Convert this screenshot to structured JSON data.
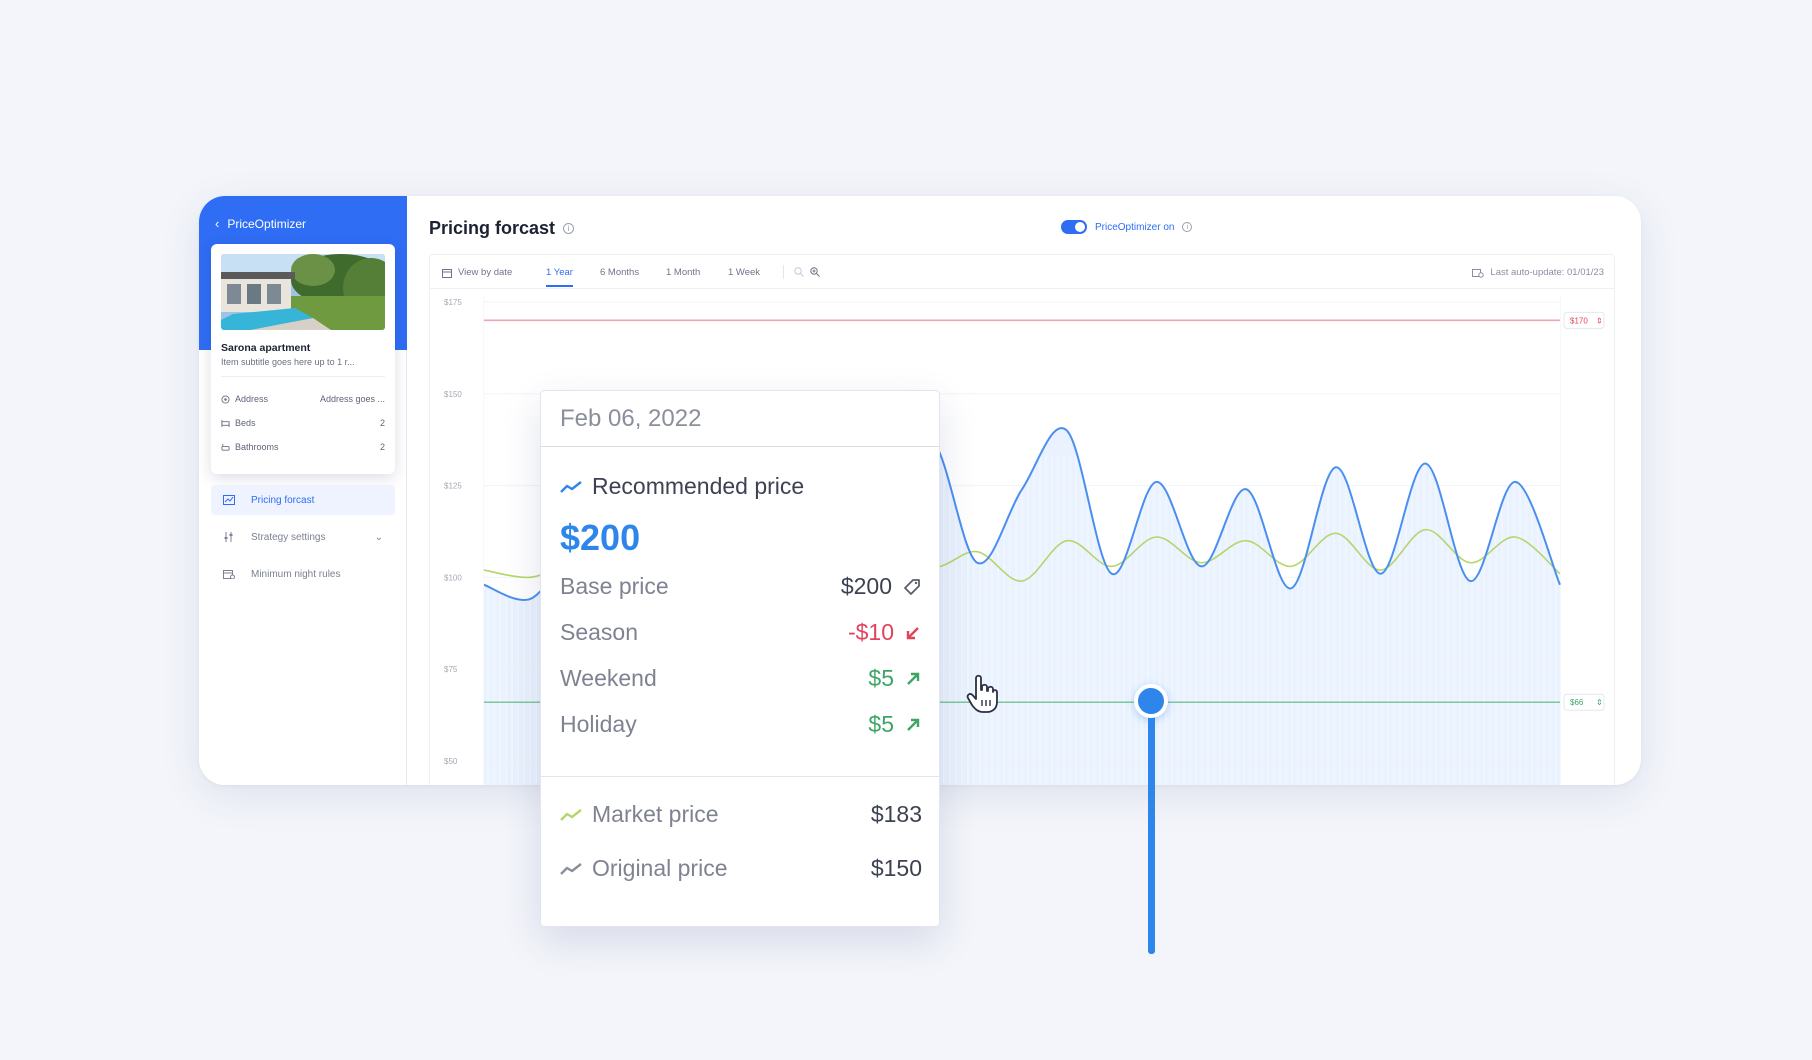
{
  "sidebar": {
    "back_label": "PriceOptimizer",
    "property": {
      "name": "Sarona apartment",
      "subtitle": "Item subtitle goes here up to 1 r...",
      "rows": [
        {
          "label": "Address",
          "value": "Address goes ...",
          "icon": "location-icon"
        },
        {
          "label": "Beds",
          "value": "2",
          "icon": "bed-icon"
        },
        {
          "label": "Bathrooms",
          "value": "2",
          "icon": "bath-icon"
        }
      ]
    },
    "nav": [
      {
        "label": "Pricing forcast",
        "icon": "chart-icon",
        "active": true
      },
      {
        "label": "Strategy settings",
        "icon": "sliders-icon",
        "active": false
      },
      {
        "label": "Minimum night rules",
        "icon": "calendar-icon",
        "active": false
      }
    ]
  },
  "header": {
    "title": "Pricing forcast",
    "toggle_label": "PriceOptimizer on"
  },
  "tabs": {
    "view_by_date": "View by date",
    "items": [
      "1 Year",
      "6 Months",
      "1 Month",
      "1 Week"
    ],
    "active": "1 Year",
    "last_update": "Last auto-update: 01/01/23"
  },
  "chart_data": {
    "type": "line",
    "y_ticks": [
      "$175",
      "$150",
      "$125",
      "$100",
      "$75",
      "$50"
    ],
    "ylim": [
      50,
      175
    ],
    "max_line": {
      "label": "$170",
      "value": 170,
      "color": "#f2a3b0"
    },
    "min_line": {
      "label": "$66",
      "value": 66,
      "color": "#7ec79a"
    },
    "series": [
      {
        "color": "#4a8ff0",
        "values": [
          98,
          94,
          104,
          88,
          93,
          110,
          98,
          128,
          99,
          119,
          137,
          104,
          124,
          140,
          101,
          126,
          103,
          124,
          97,
          130,
          101,
          131,
          99,
          126,
          98
        ]
      },
      {
        "color": "#b5d66a",
        "values": [
          102,
          100,
          103,
          97,
          101,
          112,
          103,
          106,
          101,
          113,
          103,
          107,
          99,
          110,
          103,
          111,
          104,
          110,
          103,
          112,
          102,
          113,
          104,
          111,
          101
        ]
      }
    ]
  },
  "tooltip": {
    "date": "Feb 06, 2022",
    "recommended_label": "Recommended price",
    "recommended_value": "$200",
    "rows": [
      {
        "label": "Base price",
        "value": "$200"
      },
      {
        "label": "Season",
        "value": "-$10"
      },
      {
        "label": "Weekend",
        "value": "$5"
      },
      {
        "label": "Holiday",
        "value": "$5"
      }
    ],
    "market_label": "Market price",
    "market_value": "$183",
    "original_label": "Original price",
    "original_value": "$150"
  },
  "colors": {
    "accent": "#2f6df4",
    "recommended": "#2f86ea",
    "negative": "#e0435b",
    "positive": "#3ea566"
  }
}
